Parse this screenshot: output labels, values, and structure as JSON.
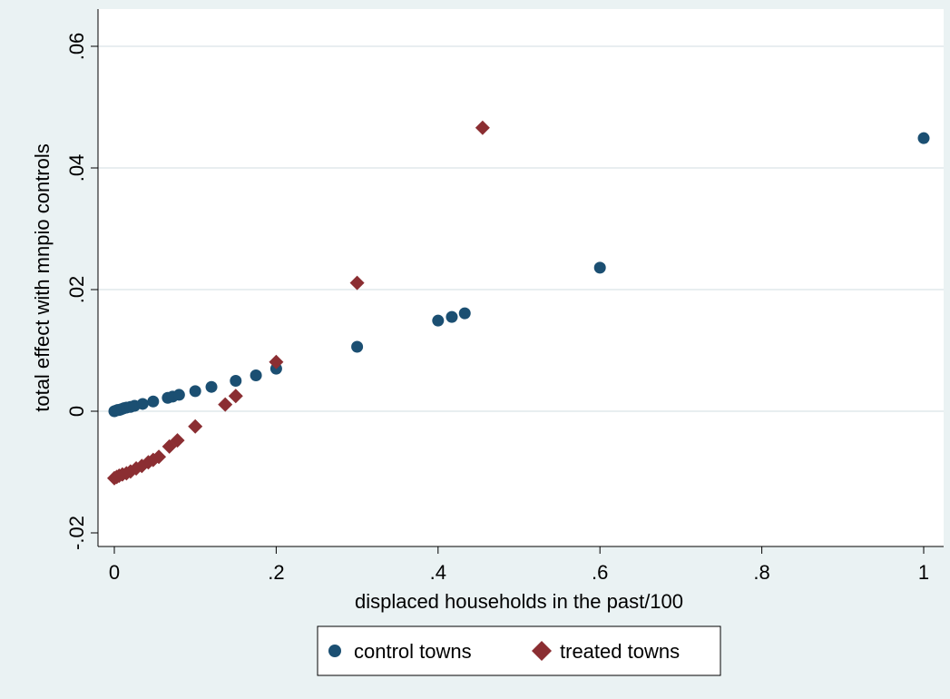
{
  "chart_data": {
    "type": "scatter",
    "xlabel": "displaced households in the past/100",
    "ylabel": "total effect with mnpio controls",
    "xlim": [
      0,
      1
    ],
    "ylim": [
      -0.02,
      0.06
    ],
    "x_ticks": [
      {
        "value": 0,
        "label": "0"
      },
      {
        "value": 0.2,
        "label": ".2"
      },
      {
        "value": 0.4,
        "label": ".4"
      },
      {
        "value": 0.6,
        "label": ".6"
      },
      {
        "value": 0.8,
        "label": ".8"
      },
      {
        "value": 1,
        "label": "1"
      }
    ],
    "y_ticks": [
      {
        "value": -0.02,
        "label": "-.02"
      },
      {
        "value": 0,
        "label": "0"
      },
      {
        "value": 0.02,
        "label": ".02"
      },
      {
        "value": 0.04,
        "label": ".04"
      },
      {
        "value": 0.06,
        "label": ".06"
      }
    ],
    "grid": "horizontal",
    "legend_position": "bottom",
    "series": [
      {
        "name": "control towns",
        "marker": "circle",
        "color": "#1b4f72",
        "points": [
          [
            0,
            0
          ],
          [
            0.002,
            0.0001
          ],
          [
            0.004,
            0.0002
          ],
          [
            0.006,
            0.0002
          ],
          [
            0.008,
            0.0003
          ],
          [
            0.01,
            0.0004
          ],
          [
            0.012,
            0.0005
          ],
          [
            0.015,
            0.0006
          ],
          [
            0.02,
            0.0007
          ],
          [
            0.025,
            0.0009
          ],
          [
            0.035,
            0.0012
          ],
          [
            0.048,
            0.0016
          ],
          [
            0.066,
            0.0022
          ],
          [
            0.072,
            0.0024
          ],
          [
            0.08,
            0.0027
          ],
          [
            0.1,
            0.0033
          ],
          [
            0.12,
            0.004
          ],
          [
            0.15,
            0.005
          ],
          [
            0.175,
            0.0059
          ],
          [
            0.2,
            0.007
          ],
          [
            0.3,
            0.0106
          ],
          [
            0.4,
            0.0149
          ],
          [
            0.417,
            0.0155
          ],
          [
            0.433,
            0.0161
          ],
          [
            0.6,
            0.0236
          ],
          [
            1,
            0.0449
          ]
        ]
      },
      {
        "name": "treated towns",
        "marker": "diamond",
        "color": "#8b2e32",
        "points": [
          [
            0,
            -0.011
          ],
          [
            0.003,
            -0.0108
          ],
          [
            0.006,
            -0.0106
          ],
          [
            0.01,
            -0.0104
          ],
          [
            0.015,
            -0.0102
          ],
          [
            0.02,
            -0.0099
          ],
          [
            0.027,
            -0.0094
          ],
          [
            0.034,
            -0.009
          ],
          [
            0.042,
            -0.0084
          ],
          [
            0.048,
            -0.008
          ],
          [
            0.055,
            -0.0075
          ],
          [
            0.068,
            -0.0058
          ],
          [
            0.078,
            -0.0048
          ],
          [
            0.1,
            -0.0025
          ],
          [
            0.137,
            0.0011
          ],
          [
            0.15,
            0.0025
          ],
          [
            0.2,
            0.0081
          ],
          [
            0.3,
            0.0211
          ],
          [
            0.455,
            0.0466
          ]
        ]
      }
    ]
  }
}
